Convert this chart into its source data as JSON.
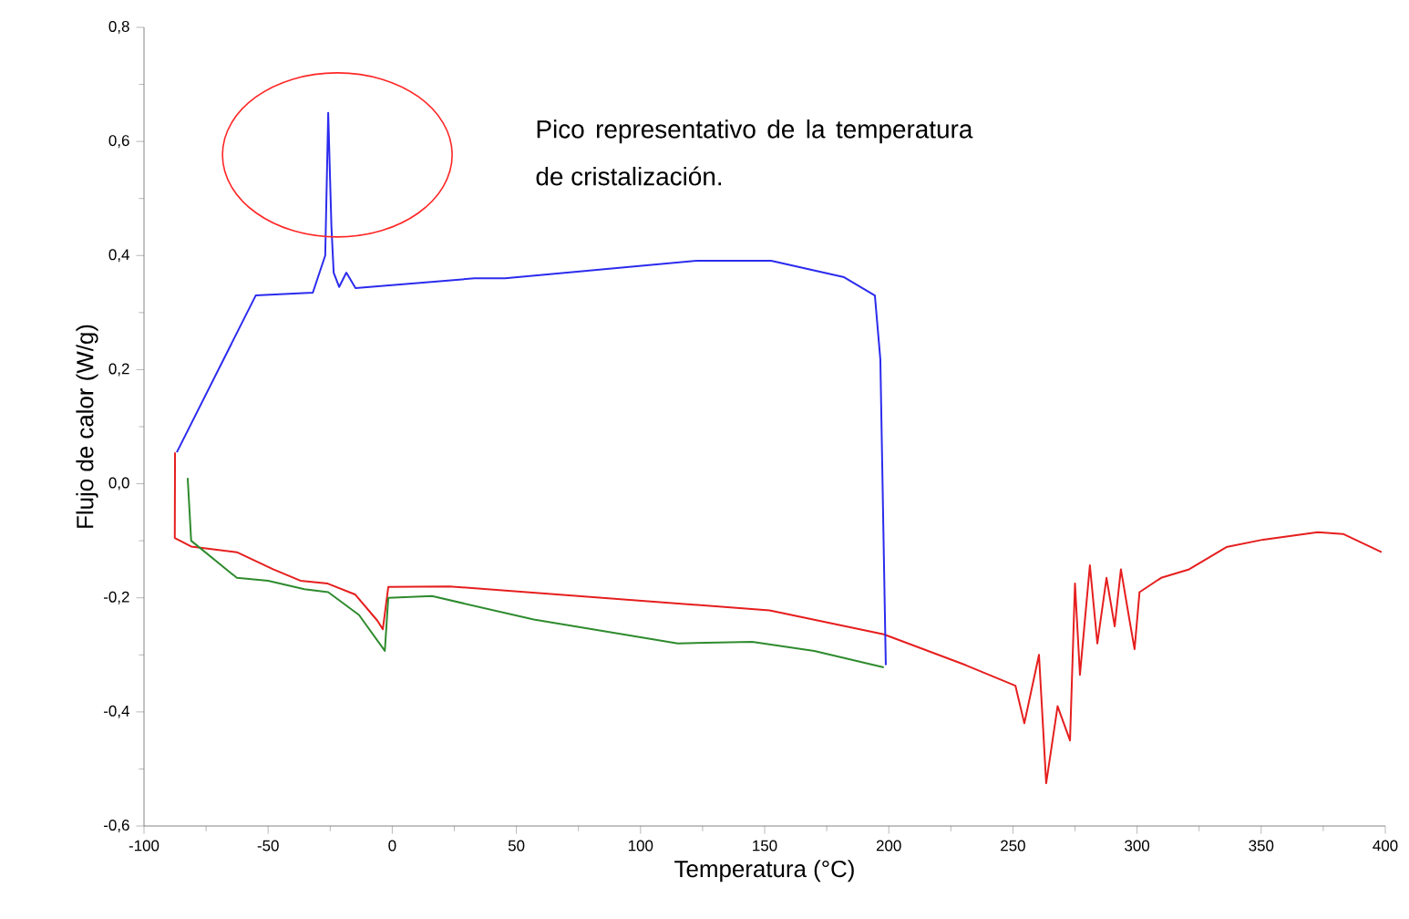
{
  "chart_data": {
    "type": "line",
    "xlabel": "Temperatura (°C)",
    "ylabel": "Flujo de calor (W/g)",
    "xlim": [
      -100,
      400
    ],
    "ylim": [
      -0.6,
      0.8
    ],
    "xticks": [
      -100,
      -50,
      0,
      50,
      100,
      150,
      200,
      250,
      300,
      350,
      400
    ],
    "yticks": [
      {
        "value": -0.6,
        "label": "-0,6"
      },
      {
        "value": -0.4,
        "label": "-0,4"
      },
      {
        "value": -0.2,
        "label": "-0,2"
      },
      {
        "value": 0,
        "label": "0,0"
      },
      {
        "value": 0.2,
        "label": "0,2"
      },
      {
        "value": 0.4,
        "label": "0,4"
      },
      {
        "value": 0.6,
        "label": "0,6"
      },
      {
        "value": 0.8,
        "label": "0,8"
      }
    ],
    "grid": false,
    "marker": "none",
    "line_style": "solid",
    "annotations": [
      "Pico representativo de la temperatura de cristalización."
    ],
    "series": [
      {
        "color": "#e61e1e",
        "x": [
          -87.5,
          -87.6,
          -81,
          -62.6,
          -48,
          -37,
          -26,
          -15,
          -6,
          -3.8,
          -1.6,
          23,
          152,
          198,
          231,
          251,
          254.6,
          260.5,
          263.4,
          268,
          273,
          275,
          277,
          281,
          284,
          287.7,
          291,
          293.5,
          297,
          299,
          301,
          309.7,
          321,
          336,
          350.8,
          372.8,
          383,
          398.5
        ],
        "values": [
          0.055,
          -0.095,
          -0.11,
          -0.12,
          -0.15,
          -0.17,
          -0.175,
          -0.194,
          -0.24,
          -0.255,
          -0.181,
          -0.18,
          -0.222,
          -0.264,
          -0.318,
          -0.354,
          -0.42,
          -0.3,
          -0.525,
          -0.39,
          -0.45,
          -0.175,
          -0.335,
          -0.143,
          -0.28,
          -0.165,
          -0.25,
          -0.15,
          -0.24,
          -0.29,
          -0.19,
          -0.165,
          -0.15,
          -0.111,
          -0.098,
          -0.085,
          -0.088,
          -0.12
        ]
      },
      {
        "color": "#2e8b2e",
        "x": [
          -82.4,
          -81,
          -62.6,
          -50,
          -35.4,
          -25.8,
          -13.4,
          -3,
          -1.6,
          16,
          57,
          115,
          145,
          170,
          198
        ],
        "values": [
          0.01,
          -0.1,
          -0.165,
          -0.17,
          -0.185,
          -0.19,
          -0.23,
          -0.293,
          -0.2,
          -0.197,
          -0.238,
          -0.28,
          -0.277,
          -0.293,
          -0.322
        ]
      },
      {
        "color": "#2b2bee",
        "x": [
          -86.8,
          -55,
          -32,
          -27,
          -25.8,
          -24.5,
          -23.6,
          -21.4,
          -18.5,
          -14.8,
          33,
          45.4,
          123,
          152.6,
          182,
          194.4,
          196.6,
          198.8
        ],
        "values": [
          0.055,
          0.33,
          0.335,
          0.4,
          0.65,
          0.45,
          0.37,
          0.345,
          0.37,
          0.343,
          0.36,
          0.36,
          0.391,
          0.391,
          0.362,
          0.33,
          0.218,
          -0.318
        ]
      }
    ]
  }
}
